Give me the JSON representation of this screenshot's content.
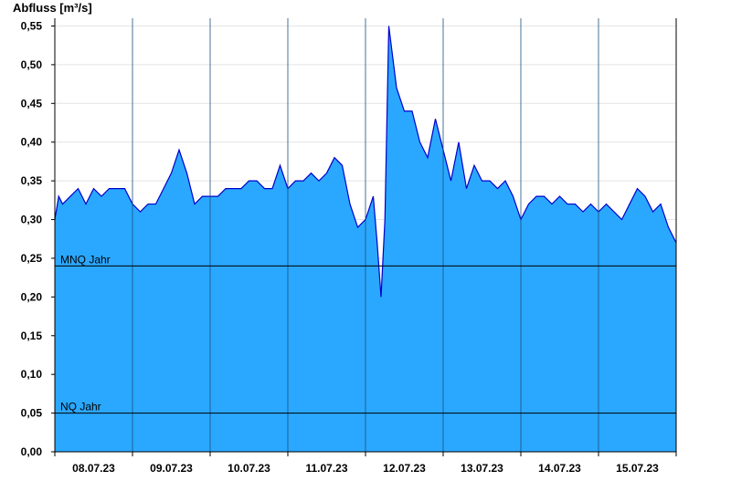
{
  "chart_data": {
    "type": "area",
    "ylabel": "Abfluss [m³/s]",
    "ylim": [
      0,
      0.56
    ],
    "y_ticks": [
      "0,00",
      "0,05",
      "0,10",
      "0,15",
      "0,20",
      "0,25",
      "0,30",
      "0,35",
      "0,40",
      "0,45",
      "0,50",
      "0,55"
    ],
    "y_tick_values": [
      0,
      0.05,
      0.1,
      0.15,
      0.2,
      0.25,
      0.3,
      0.35,
      0.4,
      0.45,
      0.5,
      0.55
    ],
    "x_range_days": [
      0,
      8
    ],
    "x_ticks": [
      "08.07.23",
      "09.07.23",
      "10.07.23",
      "11.07.23",
      "12.07.23",
      "13.07.23",
      "14.07.23",
      "15.07.23"
    ],
    "grid": true,
    "fill_color": "#2aa8ff",
    "line_color": "#0000cc",
    "reference_lines": [
      {
        "label": "MNQ Jahr",
        "value": 0.24
      },
      {
        "label": "NQ Jahr",
        "value": 0.05
      }
    ],
    "series": [
      {
        "x": [
          0.0,
          0.05,
          0.1,
          0.2,
          0.3,
          0.4,
          0.5,
          0.6,
          0.7,
          0.8,
          0.9,
          1.0,
          1.1,
          1.2,
          1.3,
          1.4,
          1.5,
          1.6,
          1.7,
          1.8,
          1.9,
          2.0,
          2.1,
          2.2,
          2.3,
          2.4,
          2.5,
          2.6,
          2.7,
          2.8,
          2.9,
          3.0,
          3.1,
          3.2,
          3.3,
          3.4,
          3.5,
          3.6,
          3.7,
          3.8,
          3.9,
          4.0,
          4.1,
          4.15,
          4.2,
          4.25,
          4.3,
          4.4,
          4.5,
          4.6,
          4.7,
          4.8,
          4.9,
          5.0,
          5.1,
          5.2,
          5.3,
          5.4,
          5.5,
          5.6,
          5.7,
          5.8,
          5.9,
          6.0,
          6.1,
          6.2,
          6.3,
          6.4,
          6.5,
          6.6,
          6.7,
          6.8,
          6.9,
          7.0,
          7.1,
          7.2,
          7.3,
          7.4,
          7.5,
          7.6,
          7.7,
          7.8,
          7.9,
          8.0
        ],
        "y": [
          0.3,
          0.33,
          0.32,
          0.33,
          0.34,
          0.32,
          0.34,
          0.33,
          0.34,
          0.34,
          0.34,
          0.32,
          0.31,
          0.32,
          0.32,
          0.34,
          0.36,
          0.39,
          0.36,
          0.32,
          0.33,
          0.33,
          0.33,
          0.34,
          0.34,
          0.34,
          0.35,
          0.35,
          0.34,
          0.34,
          0.37,
          0.34,
          0.35,
          0.35,
          0.36,
          0.35,
          0.36,
          0.38,
          0.37,
          0.32,
          0.29,
          0.3,
          0.33,
          0.27,
          0.2,
          0.3,
          0.55,
          0.47,
          0.44,
          0.44,
          0.4,
          0.38,
          0.43,
          0.39,
          0.35,
          0.4,
          0.34,
          0.37,
          0.35,
          0.35,
          0.34,
          0.35,
          0.33,
          0.3,
          0.32,
          0.33,
          0.33,
          0.32,
          0.33,
          0.32,
          0.32,
          0.31,
          0.32,
          0.31,
          0.32,
          0.31,
          0.3,
          0.32,
          0.34,
          0.33,
          0.31,
          0.32,
          0.29,
          0.27
        ]
      }
    ]
  }
}
